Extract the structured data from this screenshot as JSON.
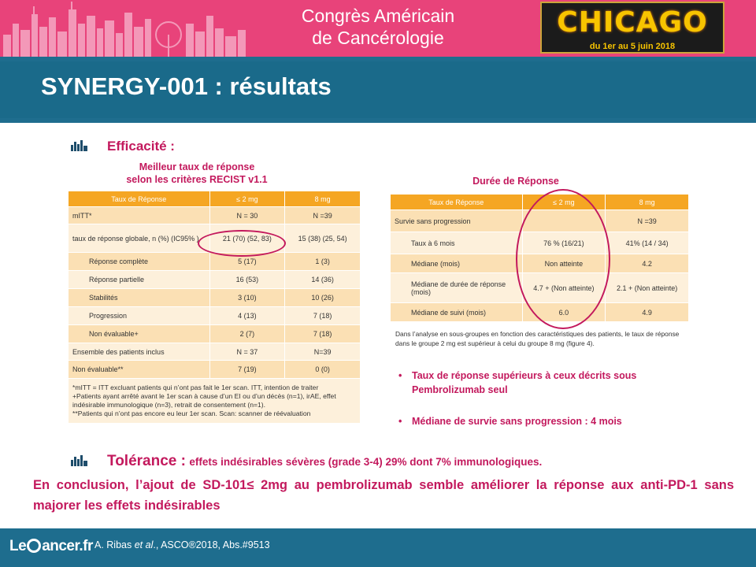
{
  "header": {
    "congress_line1": "Congrès Américain",
    "congress_line2": "de Cancérologie",
    "city": "CHICAGO",
    "dates": "du 1er au 5 juin 2018"
  },
  "title": "SYNERGY-001 : résultats",
  "efficacy": {
    "heading": "Efficacité :",
    "subtitle_line1": "Meilleur taux de réponse",
    "subtitle_line2": "selon les critères RECIST v1.1",
    "table": {
      "headers": [
        "Taux de Réponse",
        "≤ 2 mg",
        "8 mg"
      ],
      "rows": [
        {
          "label": "mITT*",
          "a": "N = 30",
          "b": "N =39"
        },
        {
          "label": "taux de réponse globale, n (%) (IC95% )",
          "a": "21 (70) (52, 83)",
          "b": "15 (38) (25, 54)"
        },
        {
          "label": "Réponse complète",
          "a": "5 (17)",
          "b": "1 (3)"
        },
        {
          "label": "Réponse partielle",
          "a": "16 (53)",
          "b": "14 (36)"
        },
        {
          "label": "Stabilités",
          "a": "3 (10)",
          "b": "10 (26)"
        },
        {
          "label": "Progression",
          "a": "4 (13)",
          "b": "7 (18)"
        },
        {
          "label": "Non évaluable+",
          "a": "2 (7)",
          "b": "7 (18)"
        },
        {
          "label": "Ensemble des patients inclus",
          "a": "N = 37",
          "b": "N=39"
        },
        {
          "label": "Non évaluable**",
          "a": "7 (19)",
          "b": "0 (0)"
        }
      ],
      "notes": [
        "*mITT = ITT excluant patients qui n’ont pas fait le 1er scan. ITT, intention de traiter",
        "+Patients ayant arrêté avant le 1er scan à cause d’un EI ou d’un décès (n=1), irAE, effet indésirable immunologique (n=3), retrait de consentement (n=1).",
        "**Patients qui n’ont pas encore eu leur 1er scan. Scan: scanner de réévaluation"
      ]
    }
  },
  "duration": {
    "heading": "Durée de Réponse",
    "table": {
      "headers": [
        "Taux de Réponse",
        "≤ 2 mg",
        "8 mg"
      ],
      "rows": [
        {
          "label": "Survie sans progression",
          "a": "",
          "b": "N =39"
        },
        {
          "label": "Taux à 6 mois",
          "a": "76 % (16/21)",
          "b": "41% (14 / 34)"
        },
        {
          "label": "Médiane (mois)",
          "a": "Non atteinte",
          "b": "4.2"
        },
        {
          "label": "Médiane de durée de réponse (mois)",
          "a": "4.7 + (Non atteinte)",
          "b": "2.1 + (Non atteinte)"
        },
        {
          "label": "Médiane de suivi (mois)",
          "a": "6.0",
          "b": "4.9"
        }
      ]
    },
    "caption": "Dans l’analyse en sous-groupes en fonction des caractéristiques des patients, le taux de réponse dans le groupe 2 mg est supérieur à celui du groupe 8 mg (figure 4).",
    "bullets": [
      "Taux de réponse supérieurs à ceux décrits sous Pembrolizumab seul",
      "Médiane de survie sans progression : 4 mois"
    ]
  },
  "tolerance": {
    "heading": "Tolérance :",
    "text": "effets indésirables sévères (grade 3-4) 29% dont 7% immunologiques."
  },
  "conclusion": "En conclusion, l’ajout de SD-101≤ 2mg au pembrolizumab semble améliorer la réponse aux anti-PD-1 sans majorer les effets indésirables",
  "footer": {
    "logo_left": "Le",
    "logo_right": "ancer.fr",
    "ref_prefix": "A. Ribas ",
    "ref_etal": "et al",
    "ref_suffix": "., ASCO®2018, Abs.#9513"
  },
  "colors": {
    "accent": "#c3195d",
    "banner": "#e8437a",
    "band": "#1e6d8e",
    "table_header": "#f5a623"
  }
}
